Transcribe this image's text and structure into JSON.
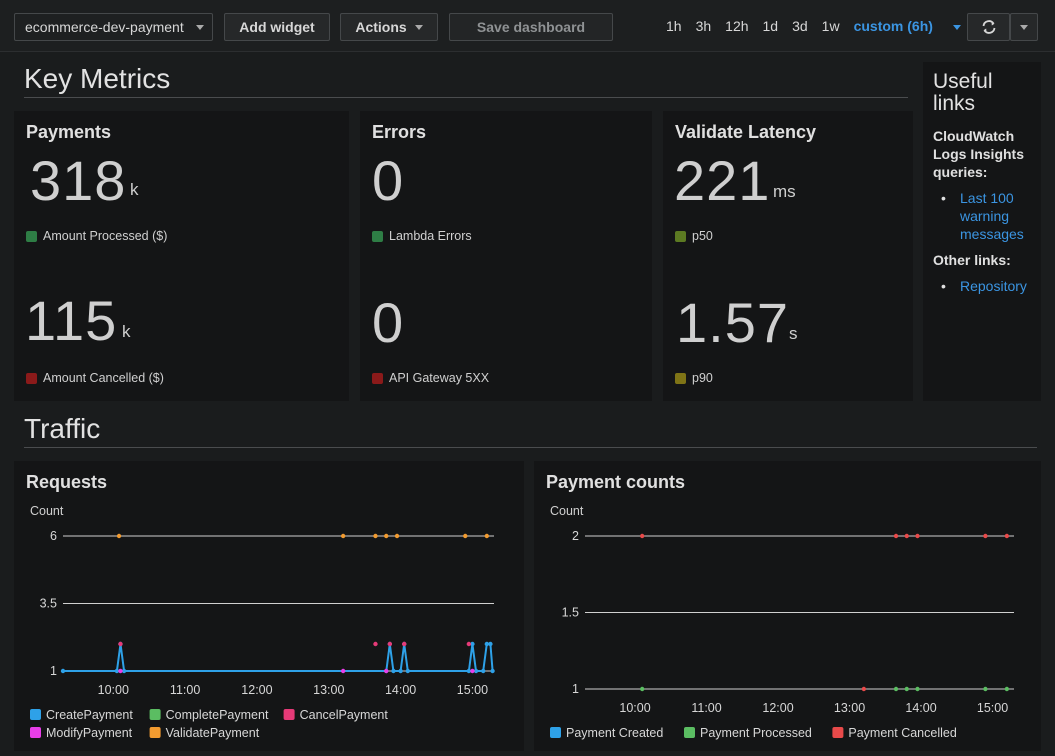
{
  "toolbar": {
    "dashboard_select": "ecommerce-dev-payment",
    "add_widget": "Add widget",
    "actions": "Actions",
    "save_dashboard": "Save dashboard",
    "time_ranges": [
      "1h",
      "3h",
      "12h",
      "1d",
      "3d",
      "1w"
    ],
    "custom_range": "custom (6h)",
    "refresh_icon": "refresh-icon",
    "refresh_menu_icon": "chevron-down-icon"
  },
  "key_metrics": {
    "title": "Key Metrics",
    "widgets": [
      {
        "title": "Payments",
        "metrics": [
          {
            "value": "318",
            "unit": "k",
            "label": "Amount Processed ($)",
            "color": "#2e7d45"
          },
          {
            "value": "115",
            "unit": "k",
            "label": "Amount Cancelled ($)",
            "color": "#8b1a1a"
          }
        ]
      },
      {
        "title": "Errors",
        "metrics": [
          {
            "value": "0",
            "unit": "",
            "label": "Lambda Errors",
            "color": "#2e7d45"
          },
          {
            "value": "0",
            "unit": "",
            "label": "API Gateway 5XX",
            "color": "#8b1a1a"
          }
        ]
      },
      {
        "title": "Validate Latency",
        "metrics": [
          {
            "value": "221",
            "unit": "ms",
            "label": "p50",
            "color": "#5c7a22"
          },
          {
            "value": "1.57",
            "unit": "s",
            "label": "p90",
            "color": "#7f7416"
          }
        ]
      }
    ]
  },
  "useful_links": {
    "title": "Useful links",
    "insights_heading": "CloudWatch Logs Insights queries:",
    "insights_links": [
      "Last 100 warning messages"
    ],
    "other_heading": "Other links:",
    "other_links": [
      "Repository"
    ]
  },
  "traffic": {
    "title": "Traffic"
  },
  "chart_data": [
    {
      "type": "line",
      "title": "Requests",
      "ylabel": "Count",
      "ylim": [
        1,
        6
      ],
      "yticks": [
        "6",
        "3.5",
        "1"
      ],
      "xticks": [
        "10:00",
        "11:00",
        "12:00",
        "13:00",
        "14:00",
        "15:00"
      ],
      "xlim_hours": [
        9.3,
        15.3
      ],
      "series": [
        {
          "name": "CreatePayment",
          "color": "#2ea1e8",
          "points": [
            [
              9.3,
              1
            ],
            [
              10.05,
              1
            ],
            [
              10.1,
              2
            ],
            [
              10.15,
              1
            ],
            [
              13.8,
              1
            ],
            [
              13.85,
              2
            ],
            [
              13.9,
              1
            ],
            [
              14.0,
              1
            ],
            [
              14.05,
              2
            ],
            [
              14.1,
              1
            ],
            [
              14.95,
              1
            ],
            [
              15.0,
              2
            ],
            [
              15.05,
              1
            ],
            [
              15.15,
              1
            ],
            [
              15.2,
              2
            ],
            [
              15.25,
              2
            ],
            [
              15.28,
              1
            ]
          ]
        },
        {
          "name": "CompletePayment",
          "color": "#5bbd62",
          "points": []
        },
        {
          "name": "CancelPayment",
          "color": "#e63a78",
          "points": [
            [
              10.1,
              2
            ],
            [
              13.65,
              2
            ],
            [
              13.85,
              2
            ],
            [
              14.05,
              2
            ],
            [
              14.95,
              2
            ]
          ]
        },
        {
          "name": "ModifyPayment",
          "color": "#e83ee8",
          "points": [
            [
              10.1,
              1
            ],
            [
              13.2,
              1
            ],
            [
              13.8,
              1
            ],
            [
              15.0,
              1
            ]
          ]
        },
        {
          "name": "ValidatePayment",
          "color": "#f29b30",
          "points": [
            [
              10.08,
              6
            ],
            [
              13.2,
              6
            ],
            [
              13.65,
              6
            ],
            [
              13.8,
              6
            ],
            [
              13.95,
              6
            ],
            [
              14.9,
              6
            ],
            [
              15.2,
              6
            ]
          ]
        }
      ]
    },
    {
      "type": "line",
      "title": "Payment counts",
      "ylabel": "Count",
      "ylim": [
        1,
        2
      ],
      "yticks": [
        "2",
        "1.5",
        "1"
      ],
      "xticks": [
        "10:00",
        "11:00",
        "12:00",
        "13:00",
        "14:00",
        "15:00"
      ],
      "xlim_hours": [
        9.3,
        15.3
      ],
      "series": [
        {
          "name": "Payment Created",
          "color": "#2ea1e8",
          "points": []
        },
        {
          "name": "Payment Processed",
          "color": "#5bbd62",
          "points": [
            [
              10.1,
              1
            ],
            [
              13.65,
              1
            ],
            [
              13.8,
              1
            ],
            [
              13.95,
              1
            ],
            [
              14.9,
              1
            ],
            [
              15.2,
              1
            ]
          ]
        },
        {
          "name": "Payment Cancelled",
          "color": "#e84a4a",
          "points": [
            [
              10.1,
              2
            ],
            [
              13.2,
              1
            ],
            [
              13.65,
              2
            ],
            [
              13.8,
              2
            ],
            [
              13.95,
              2
            ],
            [
              14.9,
              2
            ],
            [
              15.2,
              2
            ]
          ]
        }
      ]
    }
  ]
}
